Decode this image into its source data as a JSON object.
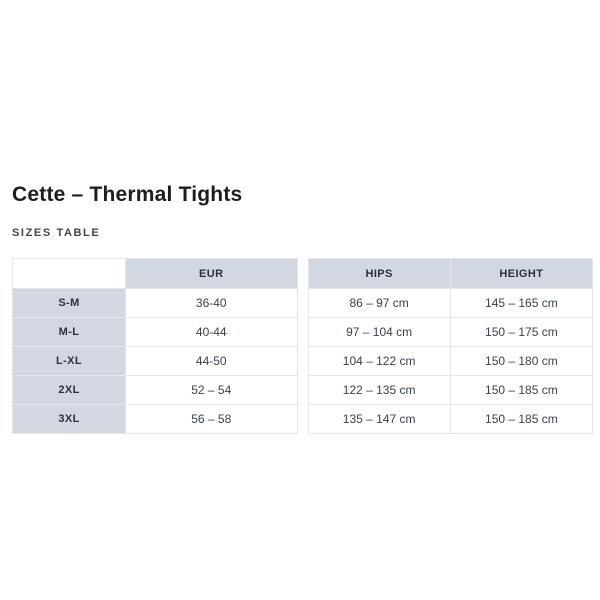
{
  "page": {
    "title": "Cette – Thermal Tights",
    "subtitle": "SIZES TABLE"
  },
  "size_table": {
    "headers": {
      "corner": "",
      "eur": "EUR",
      "hips": "HIPS",
      "height": "HEIGHT"
    },
    "rows": [
      {
        "size": "S-M",
        "eur": "36-40",
        "hips": "86 – 97 cm",
        "height": "145 – 165 cm"
      },
      {
        "size": "M-L",
        "eur": "40-44",
        "hips": "97 – 104 cm",
        "height": "150 – 175 cm"
      },
      {
        "size": "L-XL",
        "eur": "44-50",
        "hips": "104 – 122 cm",
        "height": "150 – 180 cm"
      },
      {
        "size": "2XL",
        "eur": "52 – 54",
        "hips": "122 – 135 cm",
        "height": "150 – 185 cm"
      },
      {
        "size": "3XL",
        "eur": "56 – 58",
        "hips": "135 – 147 cm",
        "height": "150 – 185 cm"
      }
    ]
  },
  "colors": {
    "header_bg": "#d2d7e1",
    "border": "#e4e6ea",
    "header_text": "#2c323e",
    "cell_text": "#39404c",
    "title_text": "#1d1d1f"
  }
}
